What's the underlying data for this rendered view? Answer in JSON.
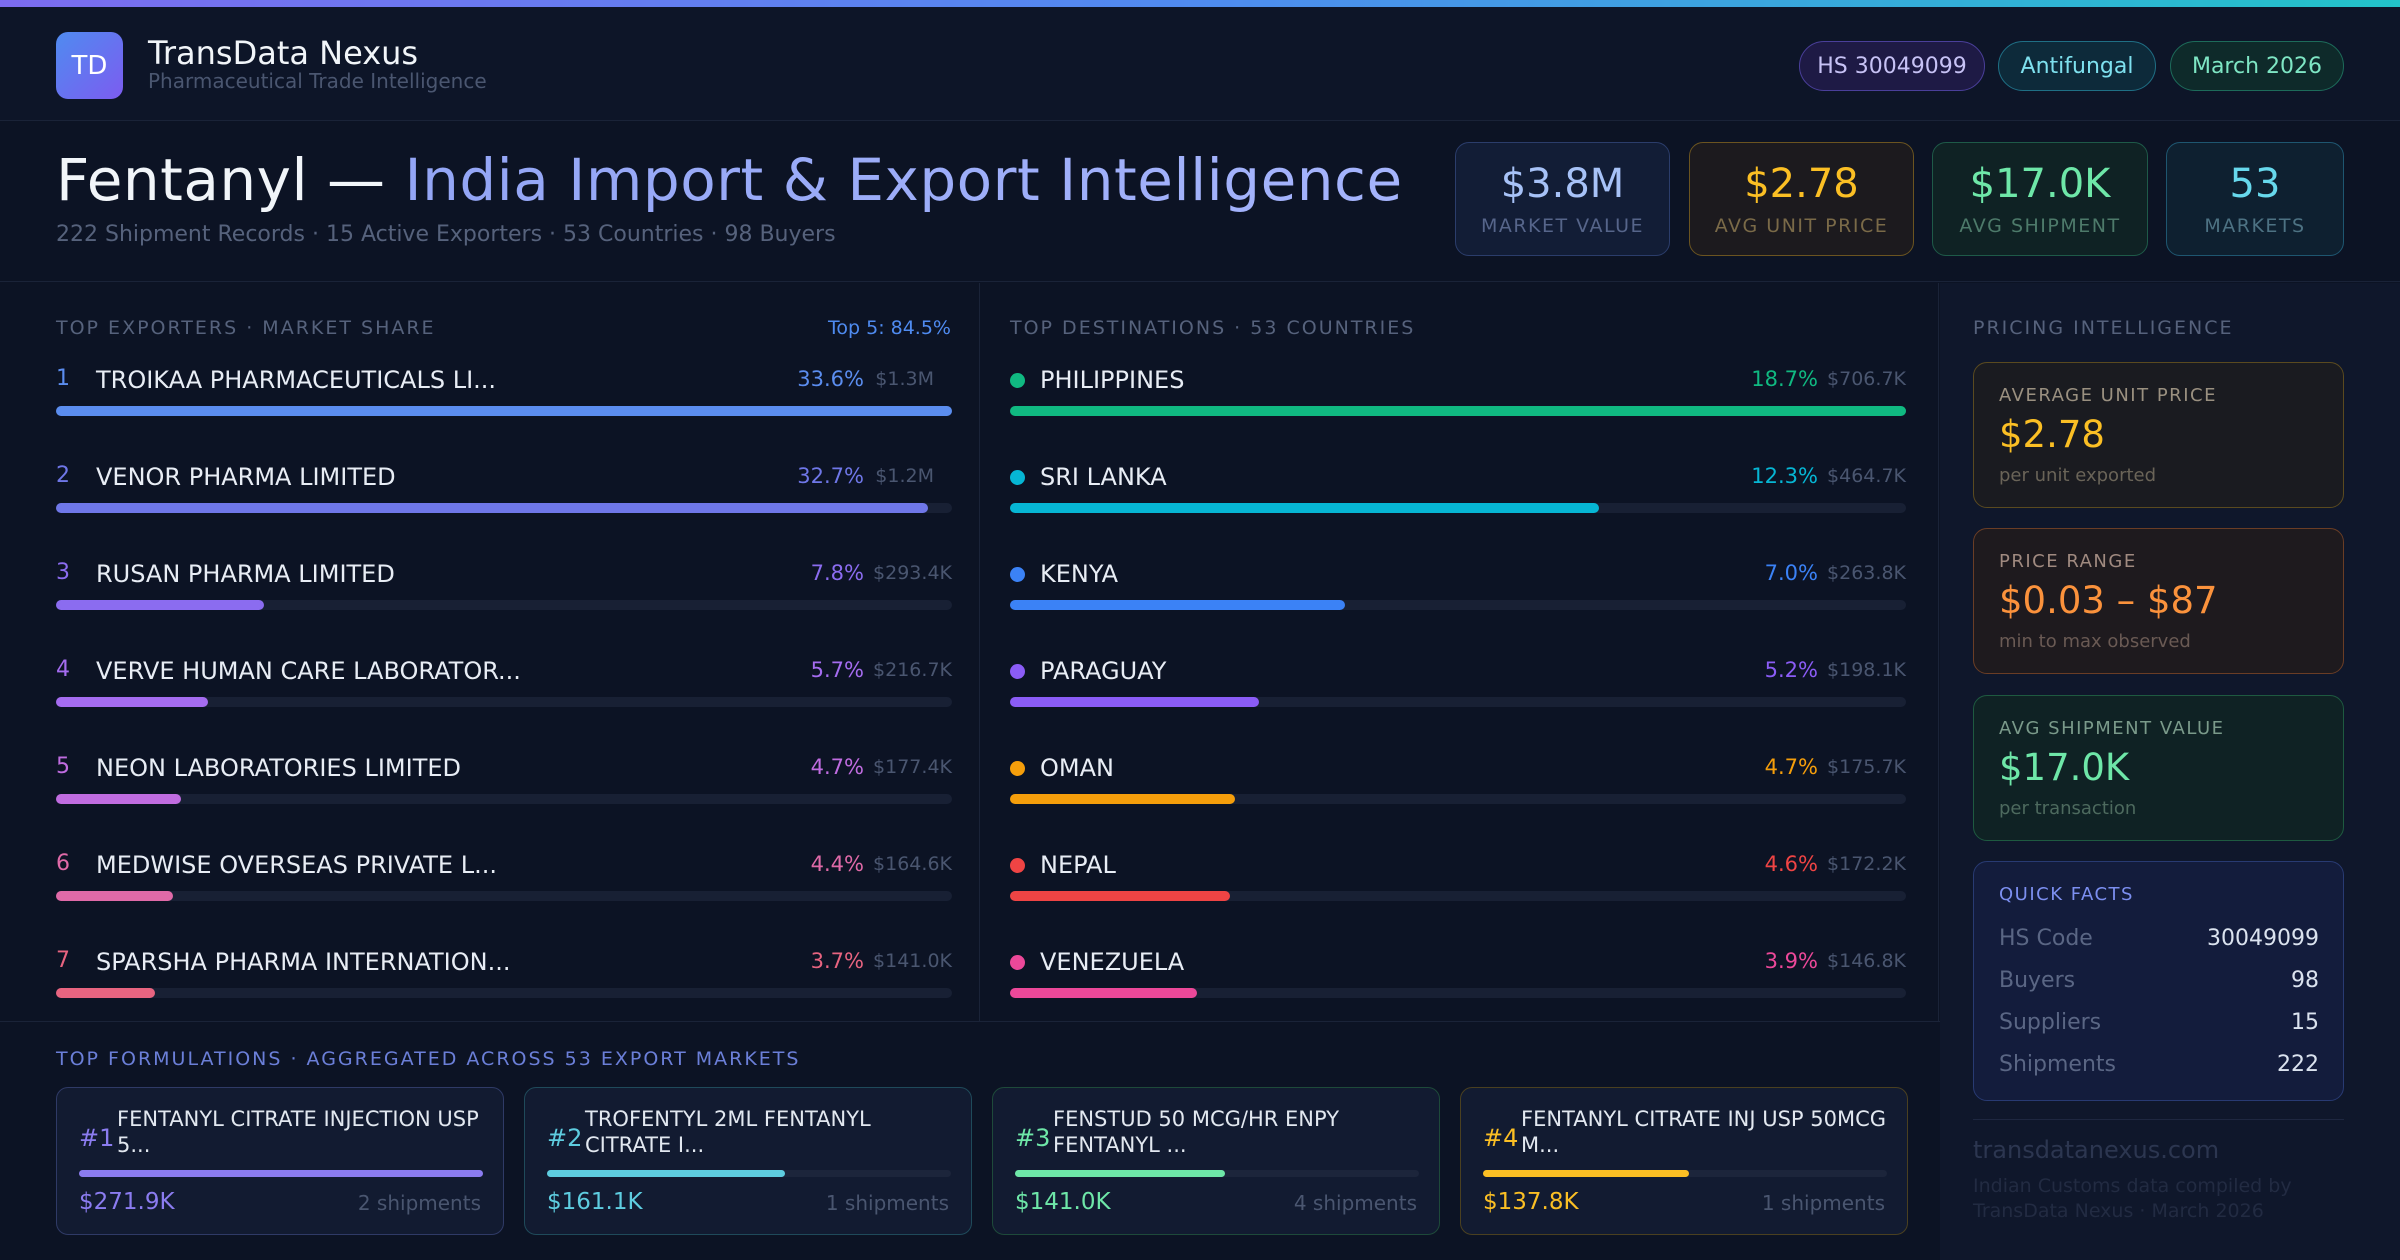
{
  "brand": {
    "logo": "TD",
    "name": "TransData Nexus",
    "subtitle": "Pharmaceutical Trade Intelligence"
  },
  "tags": {
    "hs": "HS 30049099",
    "category": "Antifungal",
    "date": "March 2026"
  },
  "hero": {
    "title_a": "Fentanyl — ",
    "title_b": "India Import & Export Intelligence",
    "subtitle": "222 Shipment Records · 15 Active Exporters · 53 Countries · 98 Buyers"
  },
  "kpis": [
    {
      "value": "$3.8M",
      "label": "MARKET VALUE"
    },
    {
      "value": "$2.78",
      "label": "AVG UNIT PRICE"
    },
    {
      "value": "$17.0K",
      "label": "AVG SHIPMENT"
    },
    {
      "value": "53",
      "label": "MARKETS"
    }
  ],
  "exporters": {
    "title": "TOP EXPORTERS · MARKET SHARE",
    "aside": "Top 5: 84.5%",
    "items": [
      {
        "rank": "1",
        "name": "TROIKAA PHARMACEUTICALS LI...",
        "pct": "33.6%",
        "amount": "$1.3M",
        "share": 33.6,
        "color": "#5b8def"
      },
      {
        "rank": "2",
        "name": "VENOR PHARMA LIMITED",
        "pct": "32.7%",
        "amount": "$1.2M",
        "share": 32.7,
        "color": "#6f77e8"
      },
      {
        "rank": "3",
        "name": "RUSAN PHARMA LIMITED",
        "pct": "7.8%",
        "amount": "$293.4K",
        "share": 7.8,
        "color": "#8b6cf0"
      },
      {
        "rank": "4",
        "name": "VERVE HUMAN CARE LABORATOR...",
        "pct": "5.7%",
        "amount": "$216.7K",
        "share": 5.7,
        "color": "#a56cf0"
      },
      {
        "rank": "5",
        "name": "NEON LABORATORIES LIMITED",
        "pct": "4.7%",
        "amount": "$177.4K",
        "share": 4.7,
        "color": "#c06ce0"
      },
      {
        "rank": "6",
        "name": "MEDWISE OVERSEAS PRIVATE L...",
        "pct": "4.4%",
        "amount": "$164.6K",
        "share": 4.4,
        "color": "#e06aa8"
      },
      {
        "rank": "7",
        "name": "SPARSHA PHARMA INTERNATION...",
        "pct": "3.7%",
        "amount": "$141.0K",
        "share": 3.7,
        "color": "#e86480"
      }
    ]
  },
  "destinations": {
    "title": "TOP DESTINATIONS · 53 COUNTRIES",
    "items": [
      {
        "name": "PHILIPPINES",
        "pct": "18.7%",
        "amount": "$706.7K",
        "share": 18.7,
        "color": "#10b981"
      },
      {
        "name": "SRI LANKA",
        "pct": "12.3%",
        "amount": "$464.7K",
        "share": 12.3,
        "color": "#06b6d4"
      },
      {
        "name": "KENYA",
        "pct": "7.0%",
        "amount": "$263.8K",
        "share": 7.0,
        "color": "#3b82f6"
      },
      {
        "name": "PARAGUAY",
        "pct": "5.2%",
        "amount": "$198.1K",
        "share": 5.2,
        "color": "#8b5cf6"
      },
      {
        "name": "OMAN",
        "pct": "4.7%",
        "amount": "$175.7K",
        "share": 4.7,
        "color": "#f59e0b"
      },
      {
        "name": "NEPAL",
        "pct": "4.6%",
        "amount": "$172.2K",
        "share": 4.6,
        "color": "#ef4444"
      },
      {
        "name": "VENEZUELA",
        "pct": "3.9%",
        "amount": "$146.8K",
        "share": 3.9,
        "color": "#ec4899"
      }
    ]
  },
  "formulations": {
    "title": "TOP FORMULATIONS · AGGREGATED ACROSS 53 EXPORT MARKETS",
    "items": [
      {
        "num": "#1",
        "name": "FENTANYL CITRATE INJECTION USP 5...",
        "value": "$271.9K",
        "shipments": "2 shipments",
        "fill": 1.0,
        "color": "#8b7cf0"
      },
      {
        "num": "#2",
        "name": "TROFENTYL 2ML FENTANYL CITRATE I...",
        "value": "$161.1K",
        "shipments": "1 shipments",
        "fill": 0.59,
        "color": "#5ecde0"
      },
      {
        "num": "#3",
        "name": "FENSTUD 50 MCG/HR ENPY FENTANYL ...",
        "value": "$141.0K",
        "shipments": "4 shipments",
        "fill": 0.52,
        "color": "#6ee7a8"
      },
      {
        "num": "#4",
        "name": "FENTANYL CITRATE INJ USP 50MCG M...",
        "value": "$137.8K",
        "shipments": "1 shipments",
        "fill": 0.51,
        "color": "#fbbf24"
      }
    ]
  },
  "pricing": {
    "title": "PRICING INTELLIGENCE",
    "avg_unit": {
      "label": "AVERAGE UNIT PRICE",
      "value": "$2.78",
      "sub": "per unit exported"
    },
    "range": {
      "label": "PRICE RANGE",
      "value": "$0.03 – $87",
      "sub": "min to max observed"
    },
    "avg_ship": {
      "label": "AVG SHIPMENT VALUE",
      "value": "$17.0K",
      "sub": "per transaction"
    }
  },
  "quick_facts": {
    "title": "QUICK FACTS",
    "rows": [
      {
        "key": "HS Code",
        "value": "30049099"
      },
      {
        "key": "Buyers",
        "value": "98"
      },
      {
        "key": "Suppliers",
        "value": "15"
      },
      {
        "key": "Shipments",
        "value": "222"
      }
    ]
  },
  "footer": {
    "site": "transdatanexus.com",
    "note": "Indian Customs data compiled by TransData Nexus · March 2026"
  }
}
